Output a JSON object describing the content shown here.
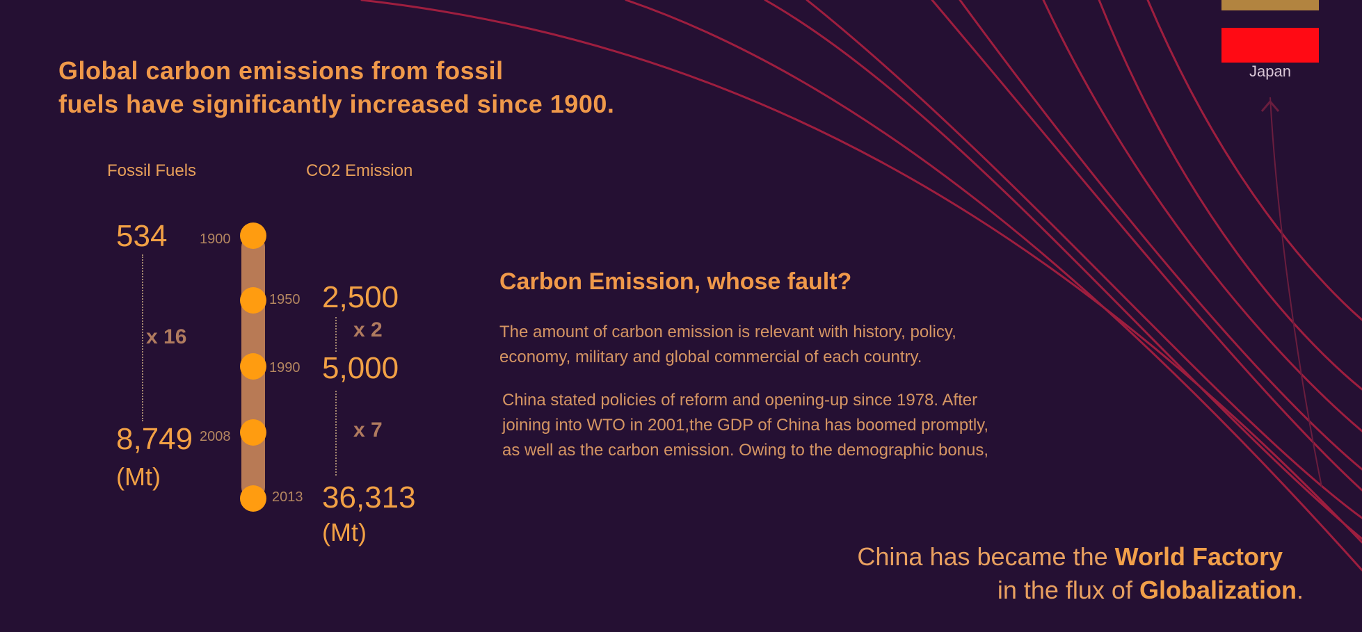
{
  "headline": {
    "line1": "Global carbon emissions from fossil",
    "line2": "fuels have significantly increased since 1900."
  },
  "columns": {
    "fossil_label": "Fossil Fuels",
    "co2_label": "CO2 Emission"
  },
  "fossil": {
    "start_value": "534",
    "end_value": "8,749",
    "unit": "(Mt)",
    "multiplier": "x 16"
  },
  "timeline": {
    "years": [
      "1900",
      "1950",
      "1990",
      "2008",
      "2013"
    ]
  },
  "co2": {
    "value_1950": "2,500",
    "value_1990": "5,000",
    "value_2013": "36,313",
    "unit": "(Mt)",
    "multiplier_1": "x 2",
    "multiplier_2": "x 7"
  },
  "section": {
    "title": "Carbon Emission, whose fault?",
    "para1_line1": "The amount of carbon emission is relevant with history, policy,",
    "para1_line2": "economy, military and global commercial of each country.",
    "para2_line1": "China stated policies of reform and opening-up since 1978. After",
    "para2_line2": "joining into WTO in 2001,the GDP of China has boomed promptly,",
    "para2_line3": "as well as the carbon emission. Owing to the demographic bonus,"
  },
  "closing": {
    "line1_pre": "China has became the ",
    "line1_bold": "World Factory",
    "line2_pre": "in the flux of ",
    "line2_bold": "Globalization",
    "line2_post": "."
  },
  "legend": {
    "country": "Japan"
  },
  "colors": {
    "background": "#251033",
    "accent": "#F0994A",
    "timeline_bar": "#B87A55",
    "timeline_dot": "#FF9C10",
    "curve": "#9E1E3F",
    "legend_red": "#FF0A14",
    "legend_tan": "#B28440"
  }
}
